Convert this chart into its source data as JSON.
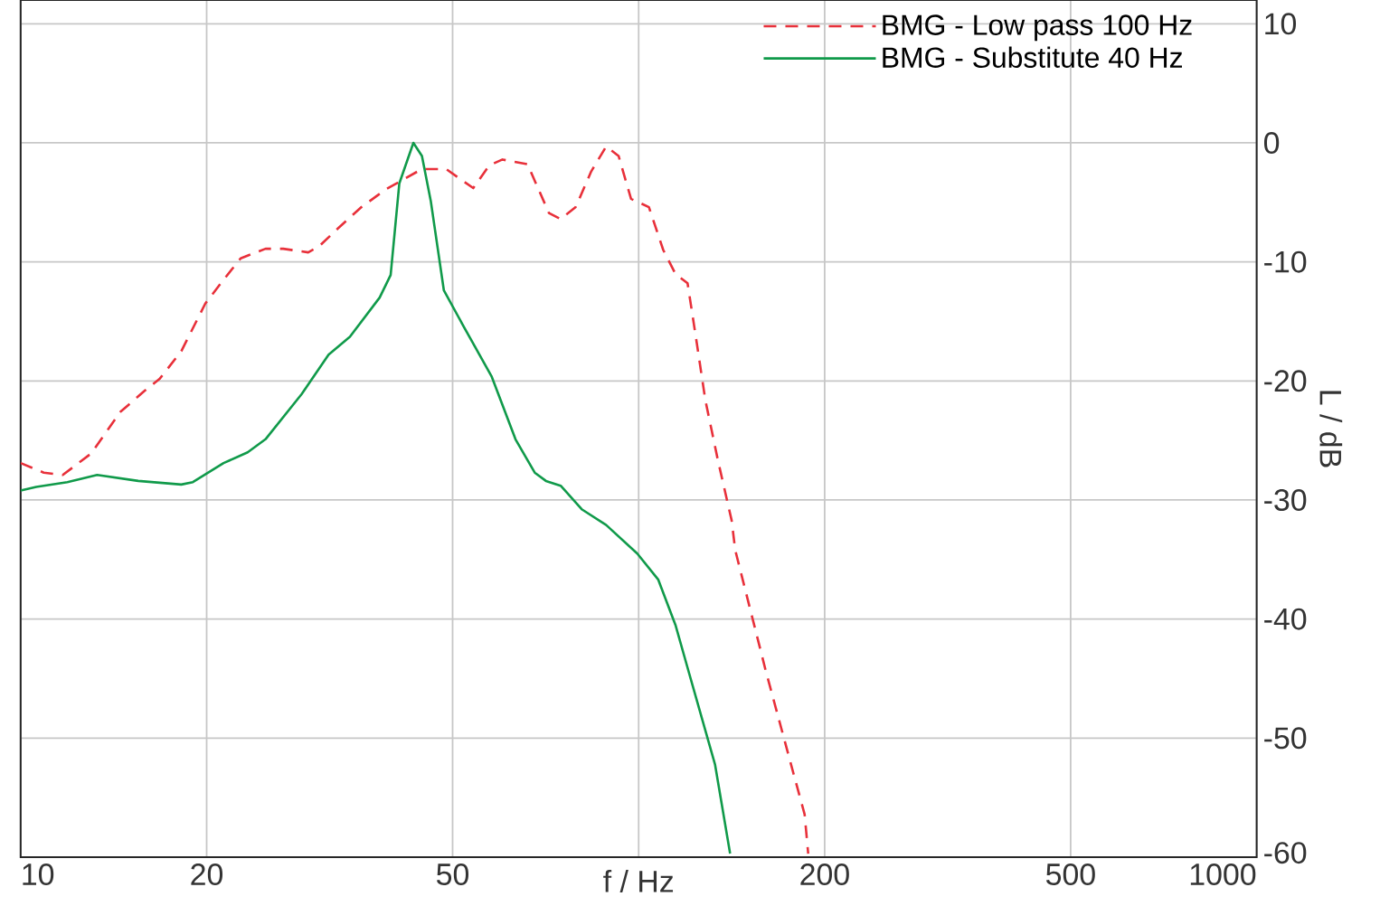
{
  "chart_data": {
    "type": "line",
    "xlabel": "f / Hz",
    "ylabel": "L / dB",
    "log": "x",
    "xlim": [
      10,
      1000
    ],
    "xticks": [
      10,
      20,
      50,
      {
        "value": 100,
        "label": null
      },
      200,
      500,
      1000
    ],
    "ylim": [
      -60,
      12
    ],
    "yticks": [
      -60,
      -50,
      -40,
      -30,
      -20,
      -10,
      0,
      10
    ],
    "grid": true,
    "legend": "top right",
    "marker": "none",
    "series": [
      {
        "name": "BMG - Low pass 100 Hz",
        "color": "#e8303a",
        "line_style": "dashed",
        "x": [
          10.0,
          10.9,
          11.7,
          13.0,
          14.5,
          15.9,
          16.8,
          18.2,
          19.9,
          21.3,
          22.7,
          24.9,
          26.6,
          29.2,
          30.4,
          32.6,
          35.6,
          39.0,
          44.6,
          48.8,
          54.0,
          57.3,
          60.2,
          66.1,
          71.6,
          74.8,
          79.1,
          83.8,
          88.6,
          92.8,
          97.2,
          103.9,
          109.6,
          114.7,
          120.0,
          124.0,
          128.2,
          131.2,
          134.4,
          141.4,
          143.3,
          160.5,
          177.9,
          185.6,
          188.1
        ],
        "values": [
          -26.9,
          -27.7,
          -27.9,
          -26.1,
          -22.6,
          -20.8,
          -19.8,
          -17.5,
          -13.5,
          -11.5,
          -9.7,
          -8.9,
          -8.9,
          -9.2,
          -8.7,
          -7.2,
          -5.4,
          -3.9,
          -2.2,
          -2.2,
          -3.8,
          -1.9,
          -1.4,
          -1.8,
          -5.9,
          -6.4,
          -5.4,
          -2.4,
          -0.3,
          -1.1,
          -4.7,
          -5.4,
          -9.0,
          -11.0,
          -11.8,
          -16.6,
          -21.6,
          -24.1,
          -26.7,
          -31.7,
          -34.2,
          -44.3,
          -52.9,
          -56.4,
          -59.7
        ]
      },
      {
        "name": "BMG - Substitute 40 Hz",
        "color": "#109a4a",
        "line_style": "solid",
        "x": [
          10.0,
          10.6,
          11.9,
          13.3,
          15.5,
          18.2,
          19.0,
          21.3,
          23.3,
          24.9,
          28.5,
          31.5,
          34.1,
          38.1,
          39.7,
          41.0,
          43.2,
          44.6,
          46.1,
          48.4,
          52.2,
          53.5,
          57.8,
          63.2,
          67.9,
          70.8,
          74.8,
          81.0,
          88.6,
          99.5,
          107.6,
          114.7,
          120.3,
          132.9,
          140.6
        ],
        "values": [
          -29.2,
          -28.9,
          -28.5,
          -27.9,
          -28.4,
          -28.7,
          -28.5,
          -26.9,
          -26.0,
          -24.9,
          -21.1,
          -17.8,
          -16.3,
          -13.0,
          -11.1,
          -3.4,
          0.0,
          -1.1,
          -4.9,
          -12.4,
          -15.5,
          -16.5,
          -19.6,
          -24.9,
          -27.7,
          -28.4,
          -28.8,
          -30.8,
          -32.1,
          -34.5,
          -36.7,
          -40.5,
          -44.3,
          -52.2,
          -59.7
        ]
      }
    ]
  }
}
